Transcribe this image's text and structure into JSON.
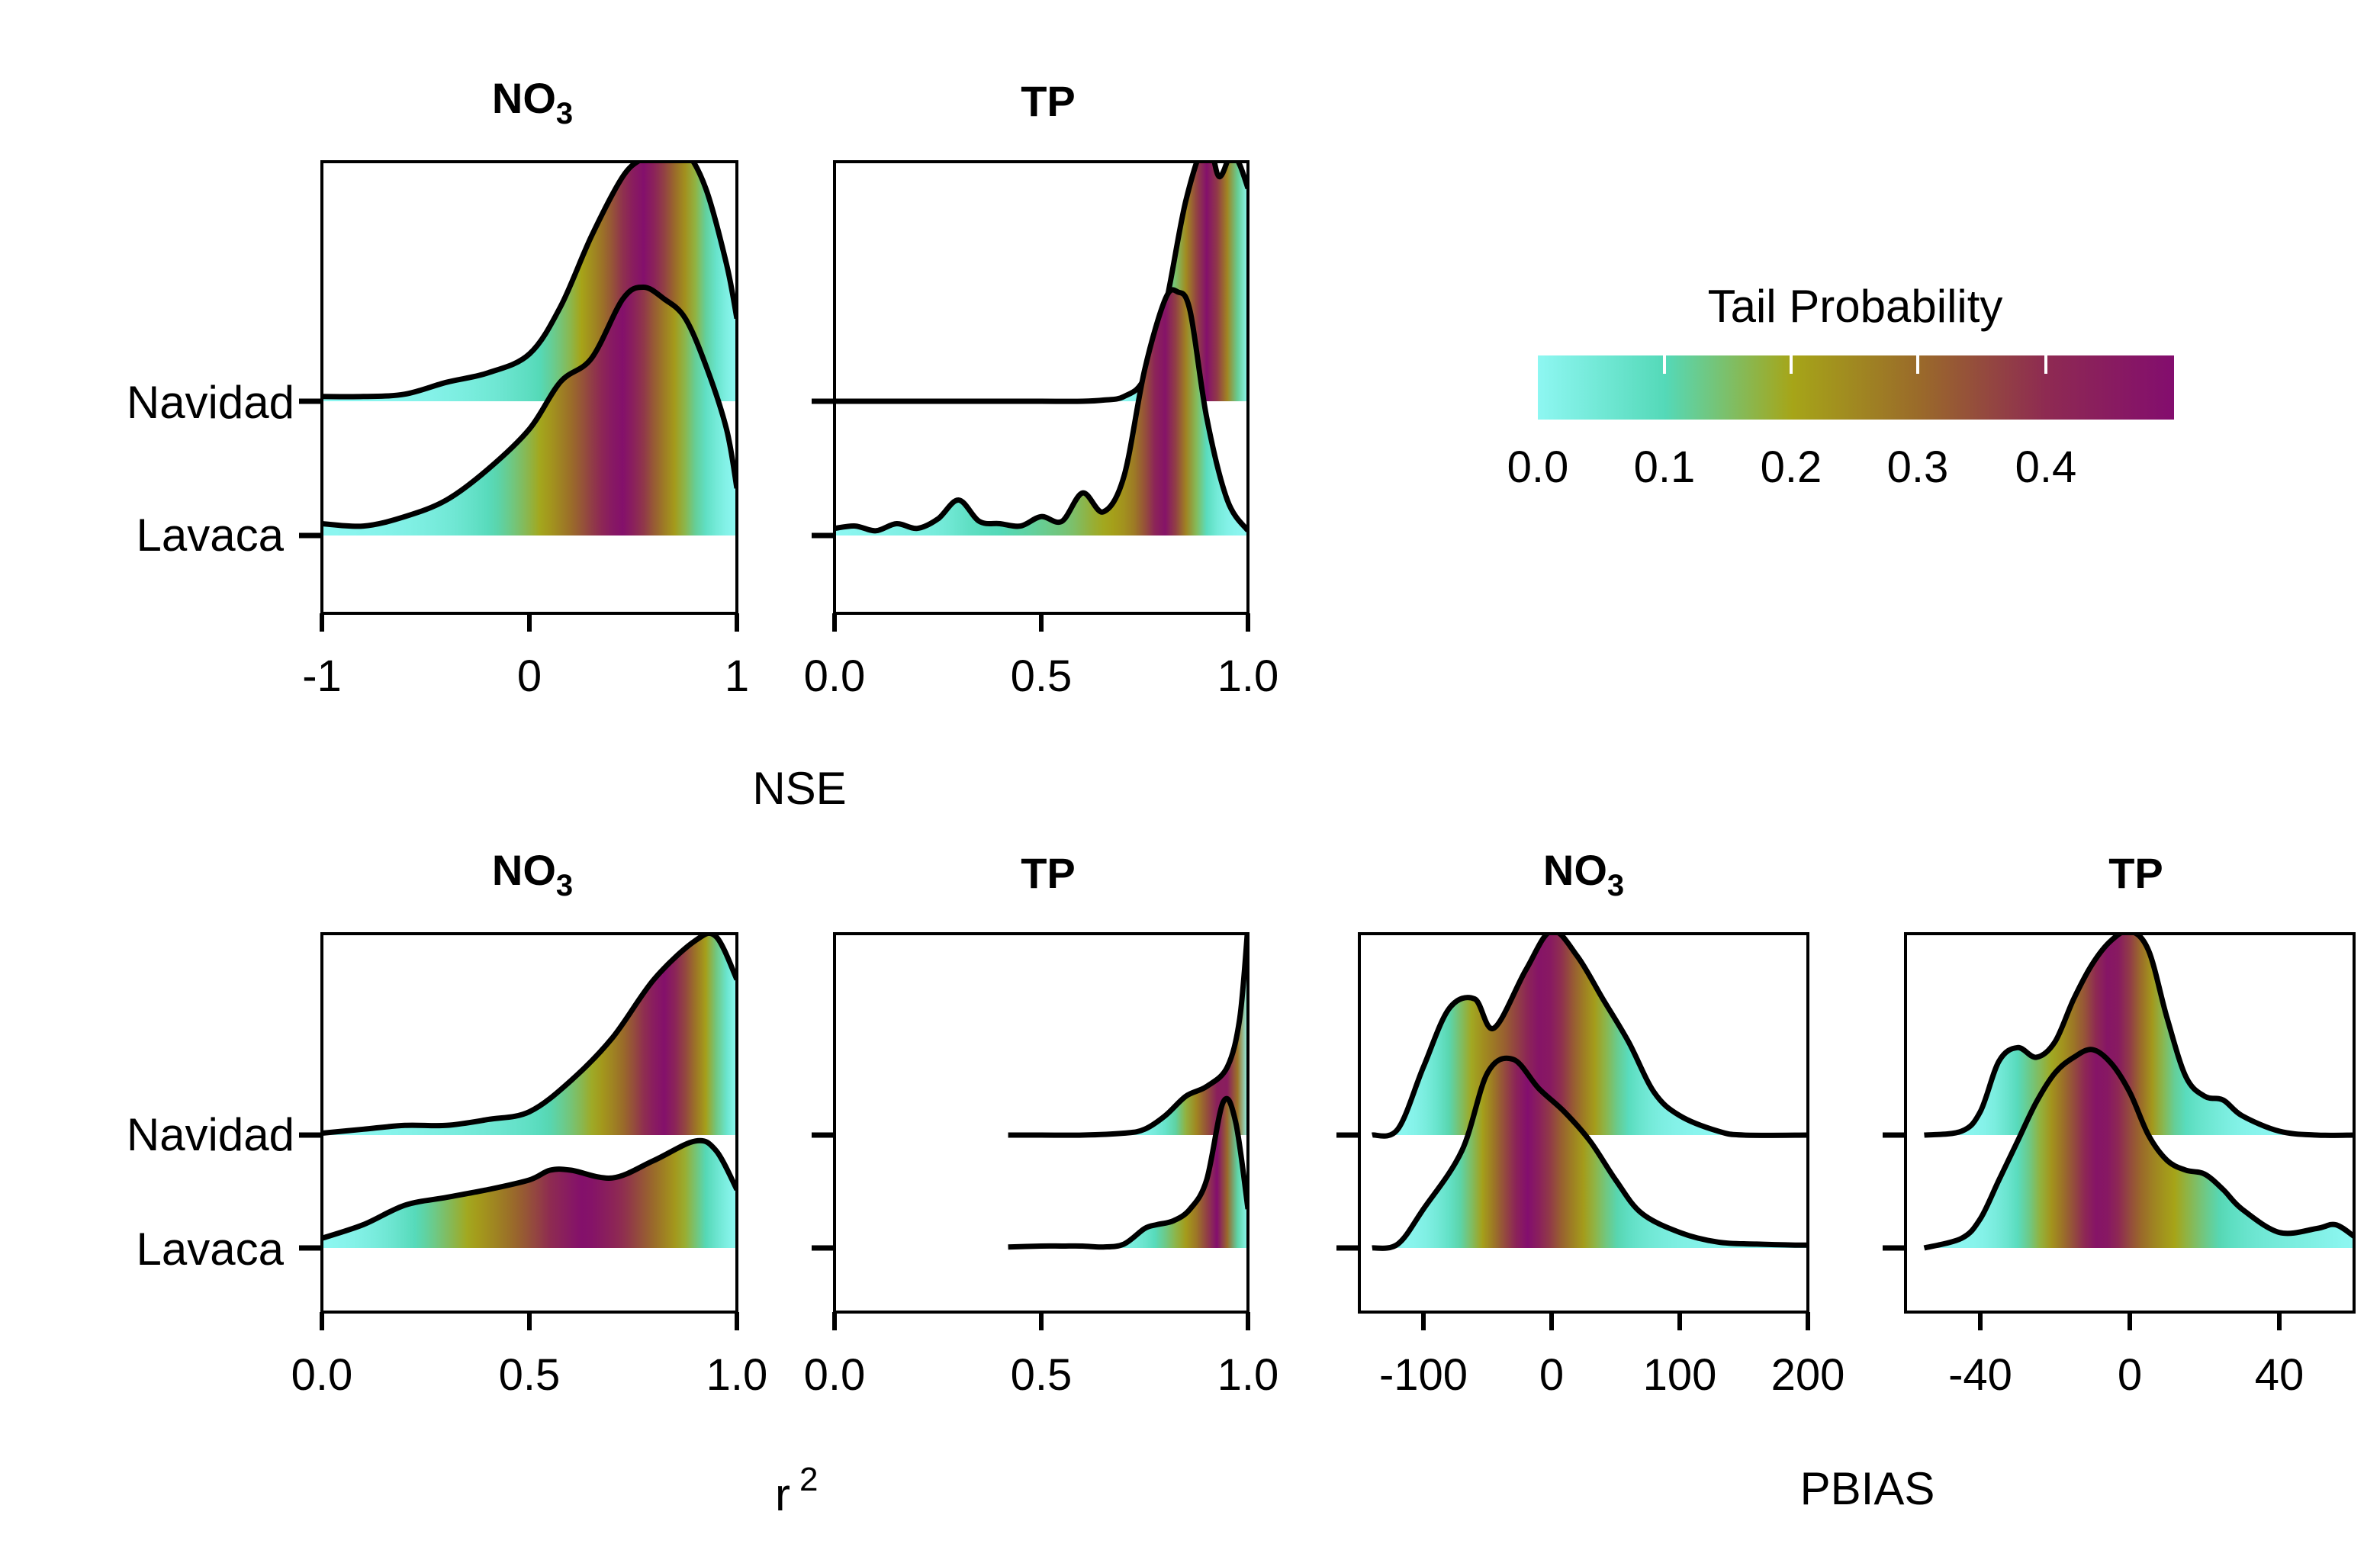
{
  "colors": {
    "gradient": [
      "#8ef7f2",
      "#54d9b8",
      "#a6a518",
      "#9a6a2a",
      "#8e2a52",
      "#830d6e"
    ],
    "line": "#000000"
  },
  "legend": {
    "title": "Tail Probability",
    "ticks": [
      "0.0",
      "0.1",
      "0.2",
      "0.3",
      "0.4"
    ]
  },
  "axis_titles": {
    "nse": "NSE",
    "r2": "r",
    "r2_sup": "2",
    "pbias": "PBIAS"
  },
  "chart_data": [
    {
      "type": "density_ridgeline",
      "title": "NO",
      "title_sub": "3",
      "metric": "NSE",
      "categories": [
        "Navidad",
        "Lavaca"
      ],
      "xlim": [
        -1,
        1
      ],
      "xticks": [
        -1,
        0,
        1
      ],
      "xtick_labels": [
        "-1",
        "0",
        "1"
      ],
      "series": [
        {
          "name": "Navidad",
          "x": [
            -1,
            -0.8,
            -0.6,
            -0.4,
            -0.2,
            0,
            0.15,
            0.3,
            0.45,
            0.55,
            0.65,
            0.75,
            0.85,
            0.95,
            1
          ],
          "density": [
            0.02,
            0.02,
            0.03,
            0.08,
            0.12,
            0.2,
            0.4,
            0.7,
            0.95,
            1.03,
            1.08,
            1.06,
            0.9,
            0.58,
            0.35
          ]
        },
        {
          "name": "Lavaca",
          "x": [
            -1,
            -0.8,
            -0.6,
            -0.4,
            -0.2,
            0,
            0.15,
            0.3,
            0.45,
            0.55,
            0.65,
            0.75,
            0.85,
            0.95,
            1
          ],
          "density": [
            0.05,
            0.04,
            0.08,
            0.15,
            0.28,
            0.45,
            0.65,
            0.75,
            1.0,
            1.05,
            1.0,
            0.92,
            0.72,
            0.45,
            0.2
          ]
        }
      ]
    },
    {
      "type": "density_ridgeline",
      "title": "TP",
      "title_sub": "",
      "metric": "NSE",
      "categories": [
        "Navidad",
        "Lavaca"
      ],
      "xlim": [
        0,
        1
      ],
      "xticks": [
        0,
        0.5,
        1
      ],
      "xtick_labels": [
        "0.0",
        "0.5",
        "1.0"
      ],
      "series": [
        {
          "name": "Navidad",
          "x": [
            0,
            0.1,
            0.2,
            0.3,
            0.4,
            0.5,
            0.6,
            0.65,
            0.7,
            0.75,
            0.8,
            0.85,
            0.9,
            0.93,
            0.96,
            0.98,
            1
          ],
          "density": [
            0,
            0,
            0,
            0,
            0,
            0,
            0,
            0.005,
            0.02,
            0.1,
            0.4,
            0.85,
            1.1,
            0.95,
            1.05,
            1.0,
            0.9
          ]
        },
        {
          "name": "Lavaca",
          "x": [
            0,
            0.05,
            0.1,
            0.15,
            0.2,
            0.25,
            0.3,
            0.35,
            0.4,
            0.45,
            0.5,
            0.55,
            0.6,
            0.65,
            0.7,
            0.75,
            0.8,
            0.83,
            0.86,
            0.9,
            0.95,
            1
          ],
          "density": [
            0.03,
            0.04,
            0.02,
            0.05,
            0.03,
            0.07,
            0.15,
            0.06,
            0.05,
            0.04,
            0.08,
            0.06,
            0.18,
            0.1,
            0.25,
            0.7,
            1.0,
            1.03,
            0.95,
            0.5,
            0.15,
            0.02
          ]
        }
      ]
    },
    {
      "type": "density_ridgeline",
      "title": "NO",
      "title_sub": "3",
      "metric": "r2",
      "categories": [
        "Navidad",
        "Lavaca"
      ],
      "xlim": [
        0,
        1
      ],
      "xticks": [
        0,
        0.5,
        1
      ],
      "xtick_labels": [
        "0.0",
        "0.5",
        "1.0"
      ],
      "series": [
        {
          "name": "Navidad",
          "x": [
            0,
            0.1,
            0.2,
            0.3,
            0.4,
            0.5,
            0.6,
            0.7,
            0.8,
            0.9,
            0.95,
            1
          ],
          "density": [
            0.01,
            0.03,
            0.05,
            0.05,
            0.08,
            0.12,
            0.28,
            0.5,
            0.8,
            1.0,
            1.02,
            0.8
          ]
        },
        {
          "name": "Lavaca",
          "x": [
            0,
            0.1,
            0.2,
            0.3,
            0.4,
            0.5,
            0.55,
            0.6,
            0.7,
            0.8,
            0.9,
            0.95,
            1
          ],
          "density": [
            0.05,
            0.12,
            0.22,
            0.26,
            0.3,
            0.35,
            0.4,
            0.4,
            0.36,
            0.45,
            0.55,
            0.5,
            0.3
          ]
        }
      ]
    },
    {
      "type": "density_ridgeline",
      "title": "TP",
      "title_sub": "",
      "metric": "r2",
      "categories": [
        "Navidad",
        "Lavaca"
      ],
      "xlim": [
        0,
        1
      ],
      "xticks": [
        0,
        0.5,
        1
      ],
      "xtick_labels": [
        "0.0",
        "0.5",
        "1.0"
      ],
      "series": [
        {
          "name": "Navidad",
          "x": [
            0.42,
            0.5,
            0.6,
            0.7,
            0.75,
            0.8,
            0.85,
            0.9,
            0.95,
            0.98,
            1
          ],
          "density": [
            0,
            0,
            0,
            0.01,
            0.03,
            0.1,
            0.2,
            0.25,
            0.35,
            0.6,
            1.08
          ]
        },
        {
          "name": "Lavaca",
          "x": [
            0.42,
            0.5,
            0.55,
            0.6,
            0.65,
            0.7,
            0.75,
            0.78,
            0.82,
            0.86,
            0.9,
            0.94,
            0.97,
            1
          ],
          "density": [
            0.005,
            0.01,
            0.01,
            0.01,
            0.005,
            0.02,
            0.1,
            0.12,
            0.14,
            0.2,
            0.35,
            0.75,
            0.65,
            0.2
          ]
        }
      ]
    },
    {
      "type": "density_ridgeline",
      "title": "NO",
      "title_sub": "3",
      "metric": "PBIAS",
      "categories": [
        "Navidad",
        "Lavaca"
      ],
      "xlim": [
        -150,
        200
      ],
      "xticks": [
        -100,
        0,
        100,
        200
      ],
      "xtick_labels": [
        "-100",
        "0",
        "100",
        "200"
      ],
      "series": [
        {
          "name": "Navidad",
          "x": [
            -140,
            -120,
            -100,
            -80,
            -60,
            -45,
            -20,
            0,
            20,
            40,
            60,
            80,
            100,
            130,
            150,
            200
          ],
          "density": [
            0,
            0.03,
            0.35,
            0.65,
            0.7,
            0.55,
            0.85,
            1.05,
            0.92,
            0.7,
            0.48,
            0.22,
            0.1,
            0.02,
            0,
            0
          ]
        },
        {
          "name": "Lavaca",
          "x": [
            -140,
            -120,
            -100,
            -70,
            -50,
            -30,
            -10,
            10,
            30,
            50,
            70,
            100,
            130,
            160,
            190,
            200
          ],
          "density": [
            0,
            0.02,
            0.2,
            0.5,
            0.9,
            0.97,
            0.82,
            0.7,
            0.55,
            0.35,
            0.18,
            0.08,
            0.03,
            0.02,
            0.015,
            0.015
          ]
        }
      ]
    },
    {
      "type": "density_ridgeline",
      "title": "TP",
      "title_sub": "",
      "metric": "PBIAS",
      "categories": [
        "Navidad",
        "Lavaca"
      ],
      "xlim": [
        -60,
        60
      ],
      "xticks": [
        -40,
        0,
        40
      ],
      "xtick_labels": [
        "-40",
        "0",
        "40"
      ],
      "series": [
        {
          "name": "Navidad",
          "x": [
            -55,
            -45,
            -40,
            -35,
            -30,
            -25,
            -20,
            -15,
            -10,
            -5,
            0,
            5,
            10,
            15,
            20,
            25,
            30,
            40,
            50,
            60
          ],
          "density": [
            0,
            0.02,
            0.12,
            0.38,
            0.45,
            0.4,
            0.48,
            0.7,
            0.88,
            1.0,
            1.05,
            0.95,
            0.6,
            0.3,
            0.2,
            0.18,
            0.1,
            0.02,
            0,
            0
          ]
        },
        {
          "name": "Lavaca",
          "x": [
            -55,
            -45,
            -40,
            -35,
            -30,
            -25,
            -20,
            -15,
            -10,
            -5,
            0,
            5,
            10,
            15,
            20,
            25,
            30,
            40,
            50,
            55,
            60
          ],
          "density": [
            0,
            0.05,
            0.15,
            0.35,
            0.55,
            0.75,
            0.9,
            0.98,
            1.02,
            0.95,
            0.8,
            0.58,
            0.45,
            0.4,
            0.38,
            0.3,
            0.2,
            0.08,
            0.1,
            0.12,
            0.06
          ]
        }
      ]
    }
  ]
}
